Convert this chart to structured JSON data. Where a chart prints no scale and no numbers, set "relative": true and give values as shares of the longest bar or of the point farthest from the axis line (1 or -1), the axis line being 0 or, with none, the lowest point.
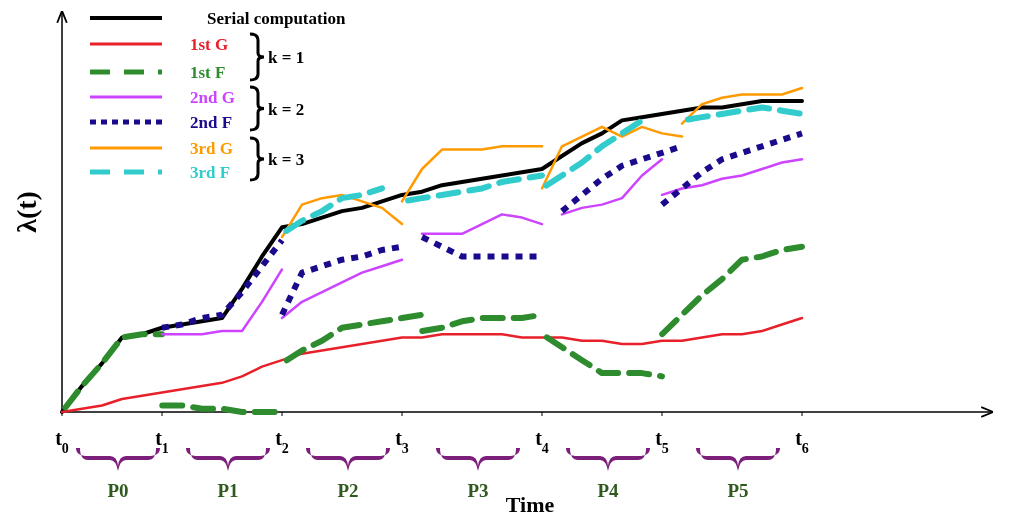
{
  "chart_data": {
    "type": "line",
    "relative": true,
    "xlabel": "Time",
    "ylabel": "λ(t)",
    "legend": "top left",
    "categories": [
      "t$_{0}$",
      null,
      null,
      null,
      null,
      "t$_{1}$",
      null,
      null,
      null,
      null,
      null,
      "t$_{2}$",
      null,
      null,
      null,
      null,
      null,
      "t$_{3}$",
      null,
      null,
      null,
      null,
      null,
      null,
      "t$_{4}$",
      null,
      null,
      null,
      null,
      null,
      "t$_{5}$",
      null,
      null,
      null,
      null,
      null,
      null,
      "t$_{6}$",
      null,
      null,
      null,
      null,
      null,
      null,
      null,
      null,
      null
    ],
    "annotations": [
      "k = 1",
      "k = 2",
      "k = 3",
      "P0",
      "P1",
      "P2",
      "P3",
      "P4",
      "P5"
    ],
    "series": [
      {
        "name": "Serial computation",
        "color": "#000000",
        "line_style": "solid",
        "values": [
          0,
          0.08,
          0.15,
          0.23,
          0.24,
          0.26,
          0.27,
          0.28,
          0.29,
          0.38,
          0.48,
          0.57,
          0.58,
          0.6,
          0.62,
          0.63,
          0.65,
          0.67,
          0.68,
          0.7,
          0.71,
          0.72,
          0.73,
          0.74,
          0.75,
          0.79,
          0.83,
          0.86,
          0.9,
          0.91,
          0.92,
          0.93,
          0.94,
          0.94,
          0.95,
          0.96,
          0.96,
          0.96,
          null,
          null,
          null,
          null,
          null,
          null,
          null,
          null,
          null
        ]
      },
      {
        "name": "1st G",
        "color": "#e8202a",
        "line_style": "solid",
        "values": [
          0,
          0.01,
          0.02,
          0.04,
          0.05,
          0.06,
          0.07,
          0.08,
          0.09,
          0.11,
          0.14,
          0.16,
          0.18,
          0.19,
          0.2,
          0.21,
          0.22,
          0.23,
          0.23,
          0.24,
          0.24,
          0.24,
          0.24,
          0.23,
          0.23,
          0.23,
          0.22,
          0.22,
          0.21,
          0.21,
          0.22,
          0.22,
          0.23,
          0.24,
          0.24,
          0.25,
          0.27,
          0.29,
          null,
          null,
          null,
          null,
          null,
          null,
          null,
          null,
          null
        ]
      },
      {
        "name": "1st F",
        "color": "#2e8b2e",
        "line_style": "dashed",
        "values": [
          0,
          0.08,
          0.15,
          0.23,
          0.24,
          0.24,
          null,
          null,
          null,
          null,
          null,
          0.15,
          0.19,
          0.22,
          0.26,
          0.27,
          0.28,
          0.29,
          0.3,
          null,
          null,
          null,
          null,
          null,
          0.24,
          0.2,
          0.16,
          0.12,
          0.12,
          0.12,
          0.11,
          null,
          null,
          null,
          null,
          null,
          null,
          null,
          null,
          null,
          null,
          null,
          null,
          null,
          null,
          null,
          null
        ]
      },
      {
        "color": "#2e8b2e",
        "line_style": "dashed",
        "values": [
          null,
          null,
          null,
          null,
          null,
          0.02,
          0.02,
          0.01,
          0.01,
          0,
          0,
          0,
          null,
          null,
          null,
          null,
          null,
          null,
          0.25,
          0.26,
          0.28,
          0.29,
          0.29,
          0.29,
          0.3,
          null,
          null,
          null,
          null,
          null,
          0.24,
          0.3,
          0.36,
          0.41,
          0.47,
          0.48,
          0.5,
          0.51,
          null,
          null,
          null,
          null,
          null,
          null,
          null,
          null,
          null
        ]
      },
      {
        "name": "2nd G",
        "color": "#cc44ff",
        "line_style": "solid",
        "values": [
          null,
          null,
          null,
          null,
          null,
          0.24,
          0.24,
          0.24,
          0.25,
          0.25,
          0.34,
          0.44,
          null,
          null,
          null,
          null,
          null,
          null,
          0.55,
          0.55,
          0.55,
          0.58,
          0.61,
          0.6,
          0.58,
          null,
          null,
          null,
          null,
          null,
          0.67,
          0.69,
          0.7,
          0.72,
          0.73,
          0.75,
          0.77,
          0.78,
          null,
          null,
          null,
          null,
          null,
          null,
          null,
          null,
          null
        ]
      },
      {
        "color": "#cc44ff",
        "line_style": "solid",
        "values": [
          null,
          null,
          null,
          null,
          null,
          null,
          null,
          null,
          null,
          null,
          null,
          0.29,
          0.34,
          0.37,
          0.4,
          0.43,
          0.45,
          0.47,
          null,
          null,
          null,
          null,
          null,
          null,
          null,
          0.61,
          0.63,
          0.64,
          0.66,
          0.73,
          0.78,
          null,
          null,
          null,
          null,
          null,
          null,
          null,
          null,
          null,
          null,
          null,
          null,
          null,
          null,
          null,
          null
        ]
      },
      {
        "name": "2nd F",
        "color": "#1a0a8c",
        "line_style": "dotted",
        "values": [
          null,
          null,
          null,
          null,
          null,
          0.26,
          0.27,
          0.29,
          0.3,
          0.37,
          0.45,
          0.53,
          null,
          null,
          null,
          null,
          null,
          null,
          0.54,
          0.51,
          0.48,
          0.48,
          0.48,
          0.48,
          0.48,
          null,
          null,
          null,
          null,
          null,
          0.64,
          0.69,
          0.74,
          0.78,
          0.8,
          0.82,
          0.84,
          0.86,
          null,
          null,
          null,
          null,
          null,
          null,
          null,
          null,
          null
        ]
      },
      {
        "color": "#1a0a8c",
        "line_style": "dotted",
        "values": [
          null,
          null,
          null,
          null,
          null,
          null,
          null,
          null,
          null,
          null,
          null,
          0.3,
          0.43,
          0.45,
          0.47,
          0.48,
          0.5,
          0.51,
          null,
          null,
          null,
          null,
          null,
          null,
          null,
          0.62,
          0.67,
          0.72,
          0.76,
          0.78,
          0.8,
          0.82,
          null,
          null,
          null,
          null,
          null,
          null,
          null,
          null,
          null,
          null,
          null,
          null,
          null,
          null,
          null
        ]
      },
      {
        "name": "3rd G",
        "color": "#ff9a00",
        "line_style": "solid",
        "values": [
          null,
          null,
          null,
          null,
          null,
          null,
          null,
          null,
          null,
          null,
          null,
          0.54,
          0.64,
          0.66,
          0.67,
          0.65,
          0.63,
          0.58,
          null,
          null,
          null,
          null,
          null,
          null,
          0.69,
          0.82,
          0.85,
          0.88,
          0.85,
          0.88,
          0.86,
          0.85,
          null,
          null,
          null,
          null,
          null,
          null,
          null,
          null,
          null,
          null,
          null,
          null,
          null,
          null,
          null
        ]
      },
      {
        "color": "#ff9a00",
        "line_style": "solid",
        "values": [
          null,
          null,
          null,
          null,
          null,
          null,
          null,
          null,
          null,
          null,
          null,
          null,
          null,
          null,
          null,
          null,
          null,
          0.65,
          0.75,
          0.81,
          0.81,
          0.81,
          0.82,
          0.82,
          0.82,
          null,
          null,
          null,
          null,
          null,
          null,
          0.89,
          0.95,
          0.97,
          0.98,
          0.98,
          0.98,
          1,
          null,
          null,
          null,
          null,
          null,
          null,
          null,
          null,
          null
        ]
      },
      {
        "name": "3rd F",
        "color": "#33cccc",
        "line_style": "dashed",
        "values": [
          null,
          null,
          null,
          null,
          null,
          null,
          null,
          null,
          null,
          null,
          null,
          0.55,
          0.59,
          0.62,
          0.66,
          0.67,
          0.69,
          null,
          null,
          null,
          null,
          null,
          null,
          null,
          0.69,
          0.73,
          0.77,
          0.82,
          0.86,
          0.9,
          null,
          null,
          null,
          null,
          null,
          null,
          null,
          null,
          null,
          null,
          null,
          null,
          null,
          null,
          null,
          null,
          null
        ]
      },
      {
        "color": "#33cccc",
        "line_style": "dashed",
        "values": [
          null,
          null,
          null,
          null,
          null,
          null,
          null,
          null,
          null,
          null,
          null,
          null,
          null,
          null,
          null,
          null,
          null,
          0.65,
          0.66,
          0.67,
          0.68,
          0.69,
          0.71,
          0.72,
          0.73,
          null,
          null,
          null,
          null,
          null,
          null,
          0.9,
          0.91,
          0.92,
          0.93,
          0.94,
          0.93,
          0.92,
          null,
          null,
          null,
          null,
          null,
          null,
          null,
          null,
          null
        ]
      }
    ]
  }
}
